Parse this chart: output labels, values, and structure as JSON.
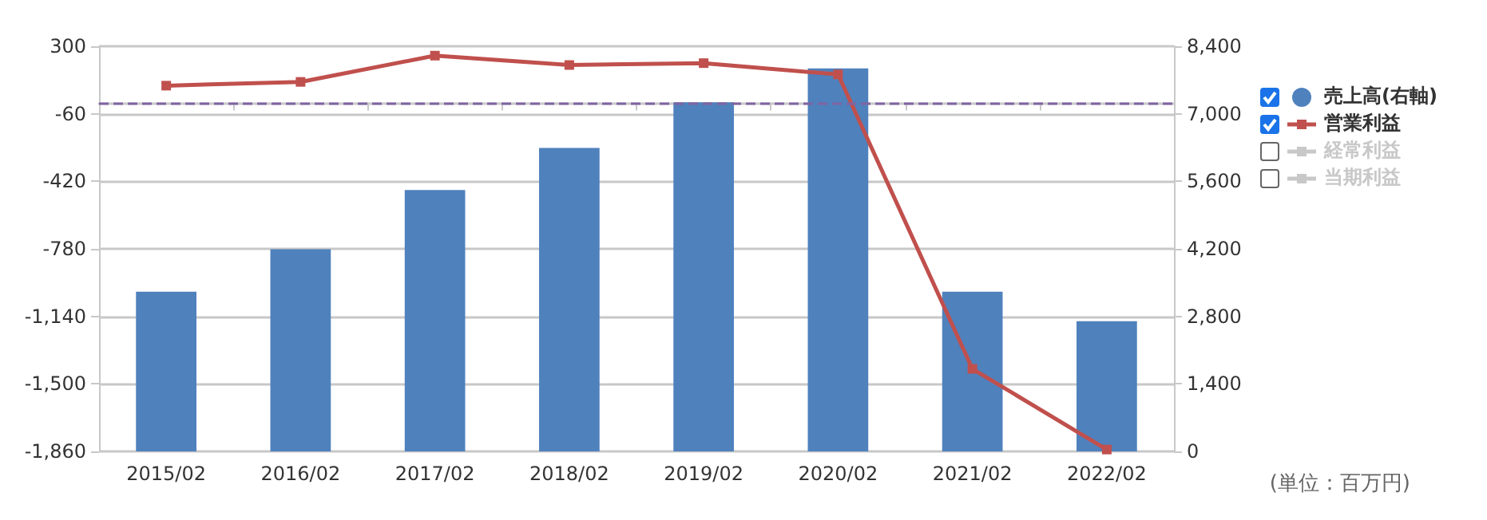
{
  "chart_data": {
    "type": "bar",
    "categories": [
      "2015/02",
      "2016/02",
      "2017/02",
      "2018/02",
      "2019/02",
      "2020/02",
      "2021/02",
      "2022/02"
    ],
    "series": [
      {
        "name": "売上高(右軸)",
        "axis": "y2",
        "color": "#4f81bd",
        "values": [
          3310,
          4190,
          5420,
          6290,
          7240,
          7940,
          3310,
          2700
        ]
      },
      {
        "name": "営業利益",
        "type": "line",
        "color": "#c0504d",
        "values": [
          90,
          110,
          250,
          200,
          210,
          150,
          -1420,
          -1850
        ]
      },
      {
        "name": "経常利益",
        "type": "line",
        "color": "#c8c8c8",
        "values": [
          null,
          null,
          null,
          null,
          null,
          null,
          null,
          null
        ]
      },
      {
        "name": "当期利益",
        "type": "line",
        "color": "#c8c8c8",
        "values": [
          null,
          null,
          null,
          null,
          null,
          null,
          null,
          null
        ]
      }
    ],
    "ylim": [
      -1860,
      300
    ],
    "yticks": [
      {
        "value": -1860,
        "label": "-1,860"
      },
      {
        "value": -1500,
        "label": "-1,500"
      },
      {
        "value": -1140,
        "label": "-1,140"
      },
      -780,
      -420,
      -60,
      300
    ],
    "y2lim": [
      0,
      8400
    ],
    "y2ticks": [
      0,
      {
        "value": 1400,
        "label": "1,400"
      },
      {
        "value": 2800,
        "label": "2,800"
      },
      {
        "value": 4200,
        "label": "4,200"
      },
      {
        "value": 5600,
        "label": "5,600"
      },
      {
        "value": 7000,
        "label": "7,000"
      },
      {
        "value": 8400,
        "label": "8,400"
      }
    ],
    "ref_lines": [
      {
        "axis": "y",
        "value": 0,
        "color": "#8064a2",
        "line_style": "dashed"
      }
    ],
    "annotations": [
      "(単位：百万円)"
    ],
    "grid": "y",
    "legend": "right",
    "marker": "square",
    "line_style": "solid"
  }
}
